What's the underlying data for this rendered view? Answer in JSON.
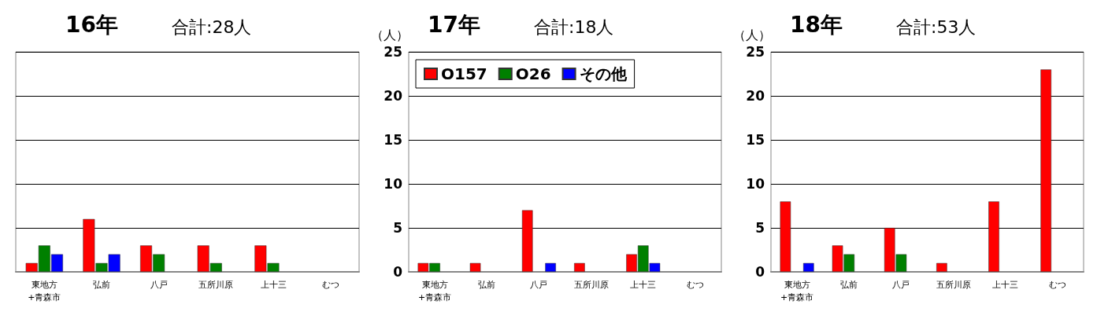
{
  "chart_data": [
    {
      "type": "bar",
      "title": "16年",
      "subtitle": "合計:28人",
      "categories": [
        "東地方\n+青森市",
        "弘前",
        "八戸",
        "五所川原",
        "上十三",
        "むつ"
      ],
      "series": [
        {
          "color": "#ff0000",
          "values": [
            1,
            6,
            3,
            3,
            3,
            null
          ]
        },
        {
          "color": "#008000",
          "values": [
            3,
            1,
            2,
            1,
            1,
            null
          ]
        },
        {
          "color": "#0000ff",
          "values": [
            2,
            2,
            null,
            null,
            null,
            null
          ]
        }
      ],
      "ylim": [
        0,
        25
      ],
      "yticks": [
        {
          "value": 0,
          "label": null
        },
        {
          "value": 5,
          "label": null
        },
        {
          "value": 10,
          "label": null
        },
        {
          "value": 15,
          "label": null
        },
        {
          "value": 20,
          "label": null
        },
        {
          "value": 25,
          "label": null
        }
      ],
      "tick_labels": "x",
      "grid": "y",
      "legend": false
    },
    {
      "type": "bar",
      "title": "17年",
      "subtitle": "合計:18人",
      "ylabel": "（人）",
      "categories": [
        "東地方\n+青森市",
        "弘前",
        "八戸",
        "五所川原",
        "上十三",
        "むつ"
      ],
      "series": [
        {
          "name": "O157",
          "color": "#ff0000",
          "values": [
            1,
            1,
            7,
            1,
            2,
            null
          ]
        },
        {
          "name": "O26",
          "color": "#008000",
          "values": [
            1,
            null,
            null,
            null,
            3,
            null
          ]
        },
        {
          "name": "その他",
          "color": "#0000ff",
          "values": [
            null,
            null,
            1,
            null,
            1,
            null
          ]
        }
      ],
      "ylim": [
        0,
        25
      ],
      "yticks": [
        0,
        5,
        10,
        15,
        20,
        25
      ],
      "grid": "y",
      "legend": "top left"
    },
    {
      "type": "bar",
      "title": "18年",
      "subtitle": "合計:53人",
      "ylabel": "（人）",
      "categories": [
        "東地方\n+青森市",
        "弘前",
        "八戸",
        "五所川原",
        "上十三",
        "むつ"
      ],
      "series": [
        {
          "color": "#ff0000",
          "values": [
            8,
            3,
            5,
            1,
            8,
            23
          ]
        },
        {
          "color": "#008000",
          "values": [
            null,
            2,
            2,
            null,
            null,
            null
          ]
        },
        {
          "color": "#0000ff",
          "values": [
            1,
            null,
            null,
            null,
            null,
            null
          ]
        }
      ],
      "ylim": [
        0,
        25
      ],
      "yticks": [
        0,
        5,
        10,
        15,
        20,
        25
      ],
      "grid": "y",
      "legend": false
    }
  ]
}
